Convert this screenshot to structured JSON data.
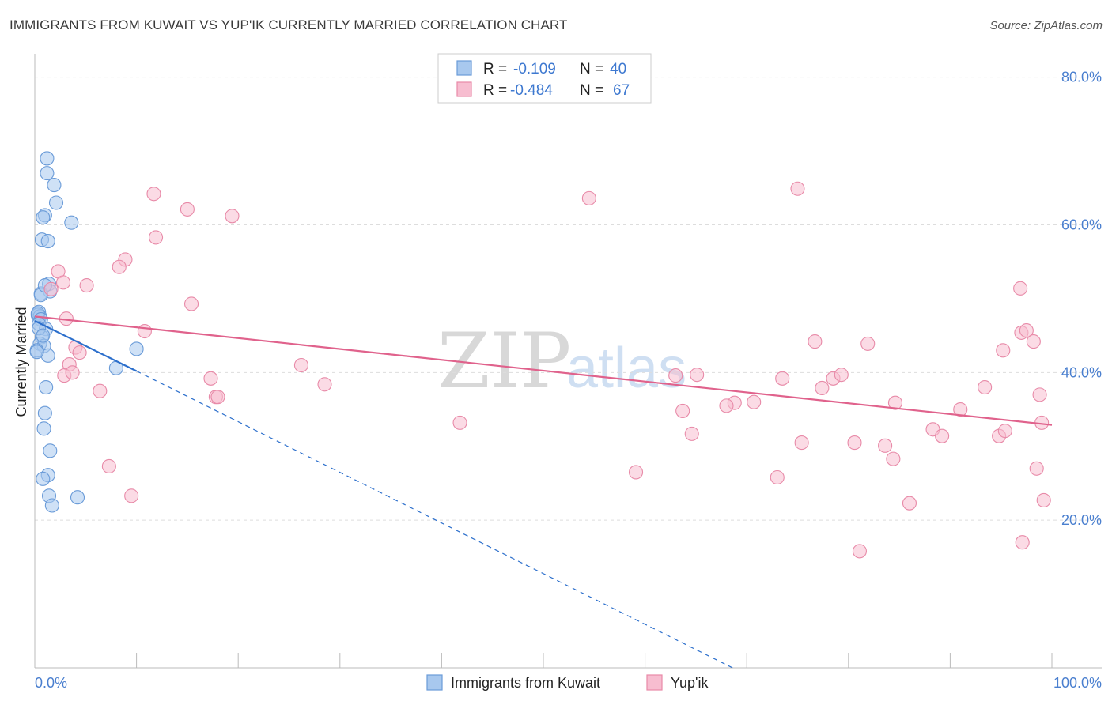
{
  "header": {
    "title": "IMMIGRANTS FROM KUWAIT VS YUP'IK CURRENTLY MARRIED CORRELATION CHART",
    "source": "Source: ZipAtlas.com"
  },
  "watermark": {
    "zip": "ZIP",
    "atlas": "atlas"
  },
  "colors": {
    "kuwait_fill": "#a8c8ee",
    "kuwait_stroke": "#6a9bd8",
    "kuwait_line": "#2c6fcc",
    "yupik_fill": "#f7bdd0",
    "yupik_stroke": "#e88aa8",
    "yupik_line": "#e0628c",
    "grid": "#dddddd",
    "axis_label": "#4a7fcf"
  },
  "legend": {
    "rows": [
      {
        "r_label": "R = ",
        "r_value": "-0.109",
        "n_label": "N = ",
        "n_value": "40"
      },
      {
        "r_label": "R = ",
        "r_value": "-0.484",
        "n_label": "N = ",
        "n_value": "67"
      }
    ]
  },
  "bottom_legend": [
    {
      "label": "Immigrants from Kuwait"
    },
    {
      "label": "Yup'ik"
    }
  ],
  "chart_data": {
    "type": "scatter",
    "title": "IMMIGRANTS FROM KUWAIT VS YUP'IK CURRENTLY MARRIED CORRELATION CHART",
    "xlabel": "",
    "ylabel": "Currently Married",
    "xlim": [
      0,
      100
    ],
    "ylim": [
      0,
      82
    ],
    "x_tick_labels": [
      {
        "value": 0,
        "label": "0.0%"
      },
      {
        "value": 100,
        "label": "100.0%"
      }
    ],
    "y_tick_labels": [
      {
        "value": 20,
        "label": "20.0%"
      },
      {
        "value": 40,
        "label": "40.0%"
      },
      {
        "value": 60,
        "label": "60.0%"
      },
      {
        "value": 80,
        "label": "80.0%"
      }
    ],
    "y_gridlines": [
      20,
      40,
      60,
      80
    ],
    "legend_position": "top-center",
    "series": [
      {
        "name": "Immigrants from Kuwait",
        "R": -0.109,
        "N": 40,
        "points": [
          [
            1.2,
            69.0
          ],
          [
            1.2,
            67.0
          ],
          [
            1.9,
            65.4
          ],
          [
            2.1,
            63.0
          ],
          [
            1.0,
            61.3
          ],
          [
            3.6,
            60.3
          ],
          [
            0.8,
            61.0
          ],
          [
            0.7,
            58.0
          ],
          [
            1.3,
            57.8
          ],
          [
            1.4,
            52.0
          ],
          [
            1.5,
            51.0
          ],
          [
            0.6,
            50.7
          ],
          [
            0.4,
            48.2
          ],
          [
            0.3,
            47.8
          ],
          [
            0.5,
            47.6
          ],
          [
            0.3,
            48.0
          ],
          [
            0.6,
            47.2
          ],
          [
            0.4,
            46.6
          ],
          [
            1.1,
            45.9
          ],
          [
            0.7,
            44.8
          ],
          [
            0.5,
            43.9
          ],
          [
            0.9,
            43.6
          ],
          [
            0.2,
            43.0
          ],
          [
            1.3,
            42.3
          ],
          [
            10.0,
            43.2
          ],
          [
            8.0,
            40.6
          ],
          [
            1.1,
            38.0
          ],
          [
            1.0,
            34.5
          ],
          [
            0.9,
            32.4
          ],
          [
            1.5,
            29.4
          ],
          [
            1.3,
            26.1
          ],
          [
            0.8,
            25.6
          ],
          [
            1.4,
            23.3
          ],
          [
            1.7,
            22.0
          ],
          [
            4.2,
            23.1
          ],
          [
            0.6,
            50.5
          ],
          [
            0.4,
            46.0
          ],
          [
            0.8,
            45.0
          ],
          [
            1.0,
            51.8
          ],
          [
            0.2,
            42.8
          ]
        ]
      },
      {
        "name": "Yup'ik",
        "R": -0.484,
        "N": 67,
        "points": [
          [
            11.7,
            64.2
          ],
          [
            15.0,
            62.1
          ],
          [
            19.4,
            61.2
          ],
          [
            11.9,
            58.3
          ],
          [
            8.9,
            55.3
          ],
          [
            8.3,
            54.3
          ],
          [
            2.3,
            53.7
          ],
          [
            2.8,
            52.2
          ],
          [
            5.1,
            51.8
          ],
          [
            1.6,
            51.3
          ],
          [
            15.4,
            49.3
          ],
          [
            3.1,
            47.3
          ],
          [
            10.8,
            45.6
          ],
          [
            4.0,
            43.4
          ],
          [
            4.4,
            42.7
          ],
          [
            3.4,
            41.1
          ],
          [
            2.9,
            39.6
          ],
          [
            17.3,
            39.2
          ],
          [
            6.4,
            37.5
          ],
          [
            17.8,
            36.7
          ],
          [
            26.2,
            41.0
          ],
          [
            28.5,
            38.4
          ],
          [
            41.8,
            33.2
          ],
          [
            7.3,
            27.3
          ],
          [
            9.5,
            23.3
          ],
          [
            54.5,
            63.6
          ],
          [
            75.0,
            64.9
          ],
          [
            63.0,
            39.6
          ],
          [
            65.1,
            39.7
          ],
          [
            73.5,
            39.2
          ],
          [
            77.4,
            37.9
          ],
          [
            78.5,
            39.2
          ],
          [
            79.3,
            39.7
          ],
          [
            68.8,
            35.9
          ],
          [
            70.7,
            36.0
          ],
          [
            76.7,
            44.2
          ],
          [
            81.9,
            43.9
          ],
          [
            73.0,
            25.8
          ],
          [
            75.4,
            30.5
          ],
          [
            80.6,
            30.5
          ],
          [
            63.7,
            34.8
          ],
          [
            64.6,
            31.7
          ],
          [
            59.1,
            26.5
          ],
          [
            84.6,
            35.9
          ],
          [
            88.3,
            32.3
          ],
          [
            89.2,
            31.4
          ],
          [
            91.0,
            35.0
          ],
          [
            99.0,
            33.2
          ],
          [
            93.4,
            38.0
          ],
          [
            94.8,
            31.4
          ],
          [
            95.4,
            32.1
          ],
          [
            95.2,
            43.0
          ],
          [
            97.0,
            45.4
          ],
          [
            97.5,
            45.7
          ],
          [
            98.2,
            44.2
          ],
          [
            98.8,
            37.0
          ],
          [
            96.9,
            51.4
          ],
          [
            99.2,
            22.7
          ],
          [
            98.5,
            27.0
          ],
          [
            97.1,
            17.0
          ],
          [
            83.6,
            30.1
          ],
          [
            84.4,
            28.3
          ],
          [
            86.0,
            22.3
          ],
          [
            81.1,
            15.8
          ],
          [
            18.0,
            36.7
          ],
          [
            3.7,
            40.0
          ],
          [
            68.0,
            35.5
          ]
        ]
      }
    ],
    "trend_lines": [
      {
        "series": "Immigrants from Kuwait",
        "solid": [
          [
            0,
            47.0
          ],
          [
            10.0,
            40.2
          ]
        ],
        "dashed": [
          [
            10.0,
            40.2
          ],
          [
            68.6,
            0
          ]
        ]
      },
      {
        "series": "Yup'ik",
        "solid": [
          [
            0,
            47.6
          ],
          [
            100,
            32.9
          ]
        ]
      }
    ]
  }
}
